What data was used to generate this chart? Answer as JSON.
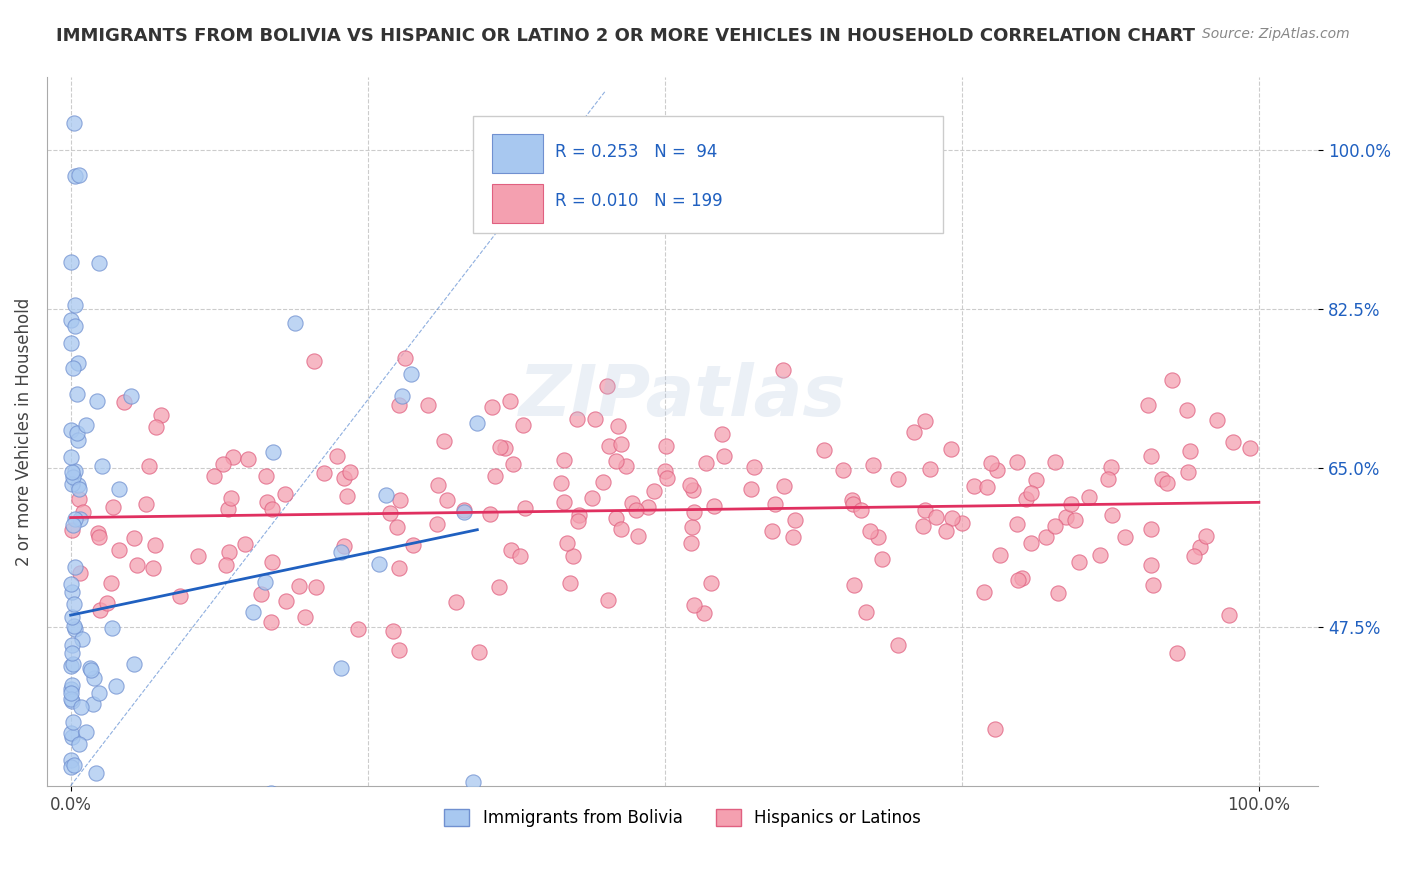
{
  "title": "IMMIGRANTS FROM BOLIVIA VS HISPANIC OR LATINO 2 OR MORE VEHICLES IN HOUSEHOLD CORRELATION CHART",
  "source": "Source: ZipAtlas.com",
  "ylabel": "2 or more Vehicles in Household",
  "xlabel": "",
  "x_tick_labels": [
    "0.0%",
    "100.0%"
  ],
  "y_tick_labels": [
    "47.5%",
    "65.0%",
    "82.5%",
    "100.0%"
  ],
  "y_tick_positions": [
    0.475,
    0.65,
    0.825,
    1.0
  ],
  "blue_R": 0.253,
  "blue_N": 94,
  "pink_R": 0.01,
  "pink_N": 199,
  "blue_color": "#a8c8f0",
  "pink_color": "#f4a0b0",
  "blue_line_color": "#2060c0",
  "pink_line_color": "#e03060",
  "blue_dot_edge": "#7090d0",
  "pink_dot_edge": "#e06080",
  "watermark": "ZIPatlas",
  "legend_text_color": "#2060c0",
  "background_color": "#ffffff",
  "grid_color": "#cccccc",
  "title_color": "#333333",
  "blue_seed": 42,
  "pink_seed": 7
}
